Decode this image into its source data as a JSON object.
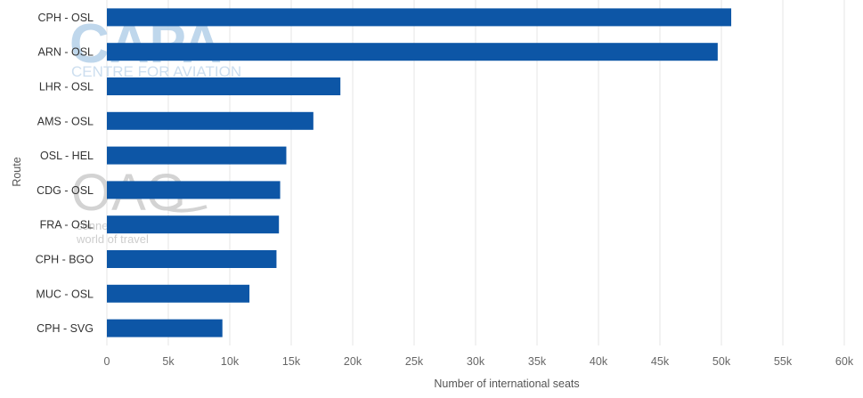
{
  "chart_data": {
    "type": "bar",
    "orientation": "horizontal",
    "categories": [
      "CPH - OSL",
      "ARN - OSL",
      "LHR - OSL",
      "AMS - OSL",
      "OSL - HEL",
      "CDG - OSL",
      "FRA - OSL",
      "CPH - BGO",
      "MUC - OSL",
      "CPH - SVG"
    ],
    "values": [
      50800,
      49700,
      19000,
      16800,
      14600,
      14100,
      14000,
      13800,
      11600,
      9400
    ],
    "xlabel": "Number of international seats",
    "ylabel": "Route",
    "xlim": [
      0,
      60000
    ],
    "xticks": [
      "0",
      "5k",
      "10k",
      "15k",
      "20k",
      "25k",
      "30k",
      "35k",
      "40k",
      "45k",
      "50k",
      "55k",
      "60k"
    ],
    "grid": "vertical",
    "bar_color": "#0d56a6",
    "grid_color": "#e6e6e6"
  },
  "watermarks": {
    "capa_logo": "CAPA",
    "capa_tagline": "CENTRE FOR AVIATION",
    "oag_logo": "OAG",
    "oag_tagline_1": "conne",
    "oag_tagline_2": "world of travel"
  }
}
